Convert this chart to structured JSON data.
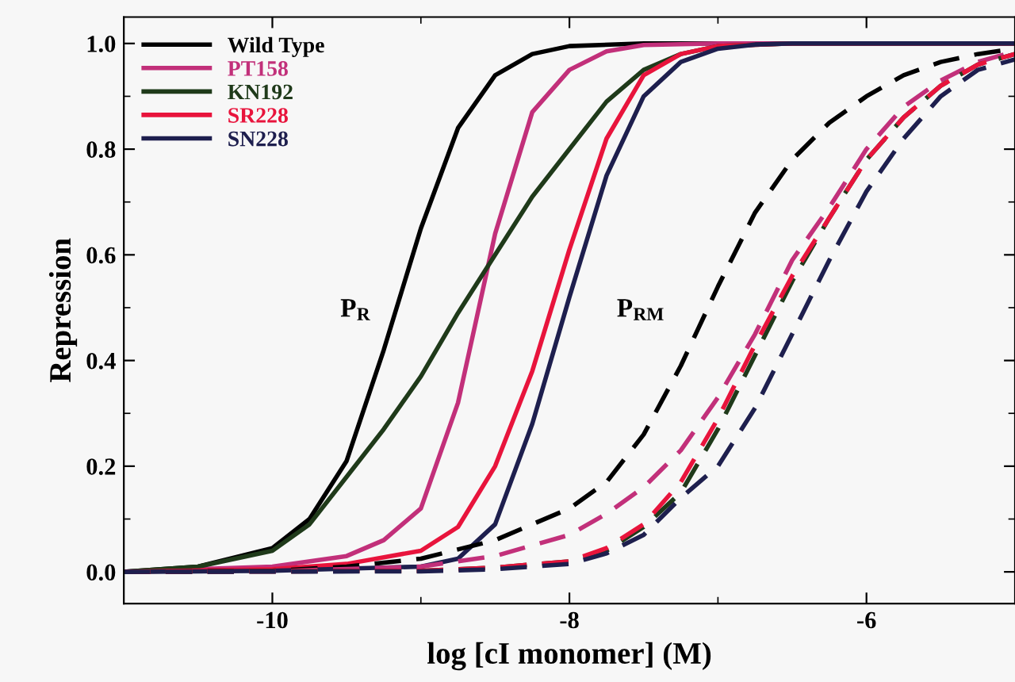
{
  "chart_data": {
    "type": "line",
    "xlabel": "log [cI monomer] (M)",
    "ylabel": "Repression",
    "xlim": [
      -11,
      -5
    ],
    "ylim": [
      -0.06,
      1.05
    ],
    "xticks": [
      {
        "value": -10,
        "label": "-10"
      },
      {
        "value": -9,
        "label": null
      },
      {
        "value": -8,
        "label": "-8"
      },
      {
        "value": -7,
        "label": null
      },
      {
        "value": -6,
        "label": "-6"
      }
    ],
    "yticks": [
      {
        "value": 0,
        "label": "0.0"
      },
      {
        "value": 0.1,
        "label": null
      },
      {
        "value": 0.2,
        "label": "0.2"
      },
      {
        "value": 0.3,
        "label": null
      },
      {
        "value": 0.4,
        "label": "0.4"
      },
      {
        "value": 0.5,
        "label": null
      },
      {
        "value": 0.6,
        "label": "0.6"
      },
      {
        "value": 0.7,
        "label": null
      },
      {
        "value": 0.8,
        "label": "0.8"
      },
      {
        "value": 0.9,
        "label": null
      },
      {
        "value": 1.0,
        "label": "1.0"
      }
    ],
    "grid": false,
    "legend": "top left",
    "marker": "none",
    "annotations": [
      "P$_{R}$",
      "P$_{RM}$"
    ],
    "series": [
      {
        "name": "Wild Type",
        "color": "#000000",
        "line_style": "solid",
        "x": [
          -11,
          -10.5,
          -10,
          -9.75,
          -9.5,
          -9.25,
          -9,
          -8.75,
          -8.5,
          -8.25,
          -8,
          -7.5,
          -5
        ],
        "values": [
          0,
          0.01,
          0.045,
          0.1,
          0.21,
          0.42,
          0.65,
          0.84,
          0.94,
          0.98,
          0.995,
          1.0,
          1.0
        ]
      },
      {
        "name": "PT158",
        "color": "#c2307a",
        "line_style": "solid",
        "x": [
          -11,
          -10,
          -9.5,
          -9.25,
          -9,
          -8.75,
          -8.625,
          -8.5,
          -8.25,
          -8,
          -7.75,
          -7.5,
          -7,
          -5
        ],
        "values": [
          0,
          0.01,
          0.03,
          0.06,
          0.12,
          0.32,
          0.48,
          0.64,
          0.87,
          0.95,
          0.985,
          0.997,
          1.0,
          1.0
        ]
      },
      {
        "name": "KN192",
        "color": "#1f3a1a",
        "line_style": "solid",
        "x": [
          -11,
          -10.5,
          -10,
          -9.75,
          -9.5,
          -9.25,
          -9,
          -8.75,
          -8.5,
          -8.25,
          -8,
          -7.75,
          -7.5,
          -7.25,
          -7,
          -6.5,
          -5
        ],
        "values": [
          0,
          0.01,
          0.04,
          0.09,
          0.18,
          0.27,
          0.37,
          0.49,
          0.6,
          0.71,
          0.8,
          0.89,
          0.95,
          0.98,
          0.995,
          1.0,
          1.0
        ]
      },
      {
        "name": "SR228",
        "color": "#e8143c",
        "line_style": "solid",
        "x": [
          -11,
          -10,
          -9.5,
          -9,
          -8.75,
          -8.5,
          -8.25,
          -8,
          -7.75,
          -7.5,
          -7.25,
          -7,
          -6.5,
          -5
        ],
        "values": [
          0,
          0.005,
          0.015,
          0.04,
          0.085,
          0.2,
          0.38,
          0.61,
          0.82,
          0.94,
          0.98,
          0.995,
          1.0,
          1.0
        ]
      },
      {
        "name": "SN228",
        "color": "#1e1f4e",
        "line_style": "solid",
        "x": [
          -11,
          -10,
          -9,
          -8.75,
          -8.5,
          -8.25,
          -8,
          -7.75,
          -7.5,
          -7.25,
          -7,
          -6.75,
          -6.5,
          -5
        ],
        "values": [
          0,
          0.002,
          0.01,
          0.025,
          0.09,
          0.28,
          0.52,
          0.75,
          0.9,
          0.965,
          0.99,
          0.998,
          1.0,
          1.0
        ]
      },
      {
        "color": "#000000",
        "line_style": "dashed",
        "x": [
          -11,
          -10,
          -9.5,
          -9,
          -8.5,
          -8,
          -7.75,
          -7.5,
          -7.25,
          -7,
          -6.75,
          -6.5,
          -6.25,
          -6,
          -5.75,
          -5.5,
          -5.25,
          -5
        ],
        "values": [
          0,
          0.002,
          0.01,
          0.025,
          0.06,
          0.12,
          0.17,
          0.26,
          0.39,
          0.54,
          0.68,
          0.78,
          0.85,
          0.9,
          0.94,
          0.965,
          0.98,
          0.99
        ]
      },
      {
        "color": "#c2307a",
        "line_style": "dashed",
        "x": [
          -11,
          -10,
          -9,
          -8.5,
          -8,
          -7.75,
          -7.5,
          -7.25,
          -7,
          -6.75,
          -6.5,
          -6.25,
          -6,
          -5.75,
          -5.5,
          -5.25,
          -5
        ],
        "values": [
          0,
          0.001,
          0.01,
          0.03,
          0.07,
          0.11,
          0.16,
          0.23,
          0.33,
          0.45,
          0.59,
          0.69,
          0.8,
          0.88,
          0.93,
          0.965,
          0.985
        ]
      },
      {
        "color": "#1f3a1a",
        "line_style": "dashed",
        "x": [
          -11,
          -9,
          -8.5,
          -8,
          -7.75,
          -7.5,
          -7.25,
          -7,
          -6.75,
          -6.5,
          -6.25,
          -6,
          -5.75,
          -5.5,
          -5.25,
          -5
        ],
        "values": [
          0,
          0.002,
          0.008,
          0.02,
          0.04,
          0.085,
          0.15,
          0.27,
          0.41,
          0.55,
          0.67,
          0.78,
          0.86,
          0.92,
          0.96,
          0.98
        ]
      },
      {
        "color": "#e8143c",
        "line_style": "dashed",
        "x": [
          -11,
          -9,
          -8.5,
          -8,
          -7.75,
          -7.5,
          -7.25,
          -7,
          -6.75,
          -6.5,
          -6.25,
          -6,
          -5.75,
          -5.5,
          -5.25,
          -5
        ],
        "values": [
          0,
          0.002,
          0.008,
          0.02,
          0.045,
          0.09,
          0.17,
          0.29,
          0.43,
          0.56,
          0.67,
          0.78,
          0.86,
          0.92,
          0.96,
          0.98
        ]
      },
      {
        "color": "#1e1f4e",
        "line_style": "dashed",
        "x": [
          -11,
          -9,
          -8.5,
          -8,
          -7.75,
          -7.5,
          -7.25,
          -7,
          -6.75,
          -6.5,
          -6.25,
          -6,
          -5.75,
          -5.5,
          -5.25,
          -5
        ],
        "values": [
          0,
          0.001,
          0.005,
          0.015,
          0.035,
          0.07,
          0.14,
          0.2,
          0.31,
          0.45,
          0.59,
          0.72,
          0.82,
          0.9,
          0.95,
          0.97
        ]
      }
    ]
  }
}
